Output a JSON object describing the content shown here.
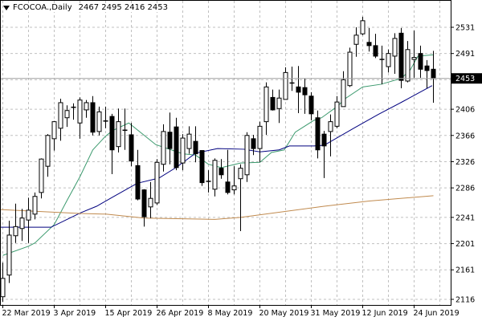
{
  "header": {
    "symbol": "FCOCOA.,Daily",
    "ohlc": "2467 2495 2416 2453",
    "menu_icon": "triangle-down-icon"
  },
  "chart_data": {
    "type": "candlestick",
    "title": "FCOCOA.,Daily",
    "ylim": [
      2116,
      2531
    ],
    "y_ticks": [
      2531,
      2491,
      2406,
      2366,
      2326,
      2286,
      2241,
      2201,
      2161,
      2116
    ],
    "current_price": "2453",
    "x_labels": [
      {
        "bar": 0,
        "label": "22 Mar 2019"
      },
      {
        "bar": 8,
        "label": "3 Apr 2019"
      },
      {
        "bar": 16,
        "label": "15 Apr 2019"
      },
      {
        "bar": 24,
        "label": "26 Apr 2019"
      },
      {
        "bar": 32,
        "label": "8 May 2019"
      },
      {
        "bar": 40,
        "label": "20 May 2019"
      },
      {
        "bar": 48,
        "label": "31 May 2019"
      },
      {
        "bar": 56,
        "label": "12 Jun 2019"
      },
      {
        "bar": 64,
        "label": "24 Jun 2019"
      }
    ],
    "grid": true,
    "candles_ohlc": [
      [
        2120,
        2172,
        2112,
        2148
      ],
      [
        2153,
        2236,
        2141,
        2214
      ],
      [
        2213,
        2262,
        2202,
        2227
      ],
      [
        2224,
        2254,
        2205,
        2240
      ],
      [
        2237,
        2271,
        2202,
        2252
      ],
      [
        2246,
        2279,
        2238,
        2273
      ],
      [
        2279,
        2331,
        2270,
        2330
      ],
      [
        2319,
        2368,
        2303,
        2366
      ],
      [
        2361,
        2388,
        2343,
        2387
      ],
      [
        2377,
        2422,
        2358,
        2416
      ],
      [
        2393,
        2412,
        2379,
        2404
      ],
      [
        2408,
        2415,
        2390,
        2409
      ],
      [
        2385,
        2424,
        2361,
        2420
      ],
      [
        2405,
        2420,
        2393,
        2416
      ],
      [
        2416,
        2426,
        2366,
        2371
      ],
      [
        2372,
        2410,
        2366,
        2402
      ],
      [
        2387,
        2410,
        2377,
        2388
      ],
      [
        2395,
        2399,
        2307,
        2344
      ],
      [
        2349,
        2407,
        2340,
        2387
      ],
      [
        2373,
        2407,
        2344,
        2374
      ],
      [
        2367,
        2385,
        2319,
        2327
      ],
      [
        2320,
        2344,
        2267,
        2269
      ],
      [
        2283,
        2284,
        2227,
        2242
      ],
      [
        2257,
        2295,
        2240,
        2270
      ],
      [
        2263,
        2330,
        2260,
        2325
      ],
      [
        2322,
        2383,
        2311,
        2372
      ],
      [
        2371,
        2401,
        2322,
        2346
      ],
      [
        2379,
        2393,
        2313,
        2317
      ],
      [
        2324,
        2368,
        2313,
        2362
      ],
      [
        2346,
        2380,
        2338,
        2368
      ],
      [
        2357,
        2380,
        2325,
        2338
      ],
      [
        2343,
        2343,
        2289,
        2294
      ],
      [
        2296,
        2313,
        2279,
        2295
      ],
      [
        2284,
        2331,
        2273,
        2328
      ],
      [
        2316,
        2330,
        2300,
        2306
      ],
      [
        2295,
        2344,
        2276,
        2279
      ],
      [
        2283,
        2319,
        2276,
        2289
      ],
      [
        2300,
        2322,
        2220,
        2316
      ],
      [
        2306,
        2371,
        2295,
        2366
      ],
      [
        2361,
        2367,
        2336,
        2346
      ],
      [
        2346,
        2387,
        2325,
        2380
      ],
      [
        2387,
        2447,
        2367,
        2440
      ],
      [
        2424,
        2436,
        2404,
        2405
      ],
      [
        2407,
        2436,
        2385,
        2423
      ],
      [
        2421,
        2470,
        2421,
        2462
      ],
      [
        2445,
        2471,
        2434,
        2446
      ],
      [
        2440,
        2472,
        2400,
        2432
      ],
      [
        2439,
        2453,
        2399,
        2428
      ],
      [
        2426,
        2432,
        2389,
        2399
      ],
      [
        2393,
        2404,
        2331,
        2344
      ],
      [
        2368,
        2373,
        2301,
        2350
      ],
      [
        2372,
        2398,
        2334,
        2387
      ],
      [
        2380,
        2426,
        2377,
        2417
      ],
      [
        2410,
        2464,
        2410,
        2451
      ],
      [
        2442,
        2500,
        2440,
        2493
      ],
      [
        2505,
        2531,
        2486,
        2519
      ],
      [
        2521,
        2547,
        2519,
        2541
      ],
      [
        2508,
        2530,
        2494,
        2503
      ],
      [
        2503,
        2521,
        2484,
        2487
      ],
      [
        2481,
        2503,
        2444,
        2482
      ],
      [
        2471,
        2497,
        2462,
        2491
      ],
      [
        2487,
        2522,
        2460,
        2514
      ],
      [
        2522,
        2530,
        2438,
        2450
      ],
      [
        2449,
        2510,
        2447,
        2497
      ],
      [
        2482,
        2526,
        2454,
        2485
      ],
      [
        2491,
        2503,
        2454,
        2467
      ],
      [
        2472,
        2481,
        2438,
        2465
      ],
      [
        2467,
        2495,
        2416,
        2453
      ]
    ],
    "series": [
      {
        "name": "ma-fast",
        "color": "#3c9a6e",
        "points": [
          [
            0,
            2183
          ],
          [
            4,
            2197
          ],
          [
            5,
            2202
          ],
          [
            8,
            2230
          ],
          [
            10,
            2267
          ],
          [
            12,
            2303
          ],
          [
            14,
            2344
          ],
          [
            15.9,
            2364
          ],
          [
            17,
            2373
          ],
          [
            19.6,
            2385
          ],
          [
            23.8,
            2352
          ],
          [
            28,
            2338
          ],
          [
            30,
            2336
          ],
          [
            32,
            2322
          ],
          [
            34,
            2317
          ],
          [
            37,
            2324
          ],
          [
            40,
            2325
          ],
          [
            41.8,
            2340
          ],
          [
            43.8,
            2344
          ],
          [
            45.5,
            2371
          ],
          [
            48.4,
            2389
          ],
          [
            49.6,
            2393
          ],
          [
            52,
            2410
          ],
          [
            53.4,
            2423
          ],
          [
            56,
            2440
          ],
          [
            58.8,
            2444
          ],
          [
            62,
            2453
          ],
          [
            63.4,
            2466
          ],
          [
            64.6,
            2487
          ],
          [
            67,
            2489
          ]
        ]
      },
      {
        "name": "ma-medium",
        "color": "#00007f",
        "points": [
          [
            -0.4,
            2226
          ],
          [
            7.5,
            2226
          ],
          [
            12.1,
            2248
          ],
          [
            14.6,
            2258
          ],
          [
            17.1,
            2272
          ],
          [
            20.9,
            2293
          ],
          [
            24.3,
            2301
          ],
          [
            27.1,
            2318
          ],
          [
            30,
            2339
          ],
          [
            33.4,
            2346
          ],
          [
            37.5,
            2345
          ],
          [
            40,
            2341
          ],
          [
            43,
            2344
          ],
          [
            44.6,
            2350
          ],
          [
            48.4,
            2350
          ],
          [
            50,
            2351
          ],
          [
            54.6,
            2377
          ],
          [
            58.4,
            2398
          ],
          [
            62.1,
            2417
          ],
          [
            66.8,
            2442
          ]
        ]
      },
      {
        "name": "ma-slow",
        "color": "#c08a4e",
        "points": [
          [
            -0.4,
            2253
          ],
          [
            12,
            2247
          ],
          [
            16,
            2246
          ],
          [
            22,
            2240
          ],
          [
            33,
            2238
          ],
          [
            37,
            2241
          ],
          [
            50,
            2258
          ],
          [
            57,
            2266
          ],
          [
            67,
            2274
          ]
        ]
      }
    ]
  }
}
